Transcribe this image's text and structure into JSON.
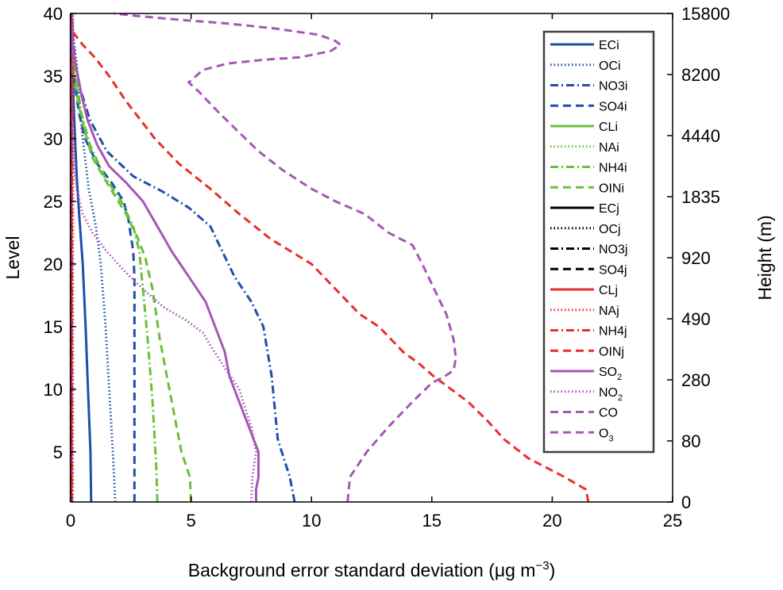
{
  "chart_data": {
    "type": "line",
    "xlabel": "Background error standard deviation (μg m",
    "xlabel_sup": "−3",
    "xlabel_suffix": ")",
    "ylabel_left": "Level",
    "ylabel_right": "Height (m)",
    "xlim": [
      0,
      25
    ],
    "ylim": [
      1,
      40
    ],
    "x_ticks": [
      "0",
      "5",
      "10",
      "15",
      "20",
      "25"
    ],
    "y_ticks_left": [
      "5",
      "10",
      "15",
      "20",
      "25",
      "30",
      "35",
      "40"
    ],
    "y_ticks_right": [
      "0",
      "80",
      "280",
      "490",
      "920",
      "1835",
      "4440",
      "8200",
      "15800"
    ],
    "legend_position": "top-right",
    "colors": {
      "blue": "#1f4fa8",
      "green": "#66c23a",
      "black": "#000000",
      "red": "#e8302c",
      "purple": "#a756b8"
    },
    "series": [
      {
        "name": "ECi",
        "sub": "",
        "color": "#1f4fa8",
        "style": "solid",
        "points": [
          [
            0.85,
            1
          ],
          [
            0.82,
            5
          ],
          [
            0.72,
            10
          ],
          [
            0.62,
            15
          ],
          [
            0.5,
            20
          ],
          [
            0.35,
            24
          ],
          [
            0.25,
            27
          ],
          [
            0.18,
            30
          ],
          [
            0.12,
            33
          ],
          [
            0.08,
            36
          ],
          [
            0.05,
            38
          ],
          [
            0.03,
            40
          ]
        ]
      },
      {
        "name": "OCi",
        "sub": "",
        "color": "#1f4fa8",
        "style": "dotted",
        "points": [
          [
            1.85,
            1
          ],
          [
            1.75,
            5
          ],
          [
            1.6,
            10
          ],
          [
            1.45,
            15
          ],
          [
            1.25,
            20
          ],
          [
            1.05,
            23
          ],
          [
            0.75,
            26
          ],
          [
            0.5,
            30
          ],
          [
            0.35,
            33
          ],
          [
            0.25,
            36
          ],
          [
            0.12,
            38
          ],
          [
            0.05,
            40
          ]
        ]
      },
      {
        "name": "NO3i",
        "sub": "",
        "color": "#1f4fa8",
        "style": "dashdot",
        "points": [
          [
            9.3,
            1
          ],
          [
            9.1,
            3
          ],
          [
            8.6,
            6
          ],
          [
            8.45,
            9
          ],
          [
            8.35,
            11
          ],
          [
            8.0,
            15
          ],
          [
            7.5,
            17
          ],
          [
            6.8,
            19
          ],
          [
            6.3,
            21
          ],
          [
            5.8,
            23
          ],
          [
            4.9,
            24.5
          ],
          [
            3.8,
            25.8
          ],
          [
            2.6,
            27
          ],
          [
            1.5,
            29
          ],
          [
            0.8,
            31.5
          ],
          [
            0.4,
            34
          ],
          [
            0.2,
            36
          ],
          [
            0.08,
            38
          ],
          [
            0.03,
            40
          ]
        ]
      },
      {
        "name": "SO4i",
        "sub": "",
        "color": "#1f4fa8",
        "style": "dashed",
        "points": [
          [
            2.65,
            1
          ],
          [
            2.65,
            5
          ],
          [
            2.65,
            10
          ],
          [
            2.65,
            15
          ],
          [
            2.65,
            19
          ],
          [
            2.6,
            21
          ],
          [
            2.4,
            23.5
          ],
          [
            2.2,
            25
          ],
          [
            1.7,
            26.5
          ],
          [
            1.1,
            28
          ],
          [
            0.6,
            30
          ],
          [
            0.35,
            32
          ],
          [
            0.2,
            34
          ],
          [
            0.1,
            36
          ],
          [
            0.05,
            38
          ],
          [
            0.02,
            40
          ]
        ]
      },
      {
        "name": "CLi",
        "sub": "",
        "color": "#66c23a",
        "style": "solid",
        "points": [
          [
            0.02,
            1
          ],
          [
            0.02,
            10
          ],
          [
            0.02,
            20
          ],
          [
            0.02,
            30
          ],
          [
            0.02,
            40
          ]
        ]
      },
      {
        "name": "NAi",
        "sub": "",
        "color": "#66c23a",
        "style": "dotted",
        "points": [
          [
            0.03,
            1
          ],
          [
            0.03,
            10
          ],
          [
            0.03,
            20
          ],
          [
            0.03,
            30
          ],
          [
            0.03,
            40
          ]
        ]
      },
      {
        "name": "NH4i",
        "sub": "",
        "color": "#66c23a",
        "style": "dashdot",
        "points": [
          [
            3.6,
            1
          ],
          [
            3.55,
            4
          ],
          [
            3.4,
            9
          ],
          [
            3.2,
            14
          ],
          [
            3.0,
            18
          ],
          [
            2.85,
            21
          ],
          [
            2.6,
            23
          ],
          [
            2.1,
            25
          ],
          [
            1.4,
            27
          ],
          [
            0.8,
            29.5
          ],
          [
            0.45,
            32
          ],
          [
            0.25,
            34.5
          ],
          [
            0.12,
            36.5
          ],
          [
            0.05,
            38
          ],
          [
            0.02,
            40
          ]
        ]
      },
      {
        "name": "OINi",
        "sub": "",
        "color": "#66c23a",
        "style": "dashed",
        "points": [
          [
            5.0,
            1
          ],
          [
            4.95,
            3
          ],
          [
            4.6,
            5
          ],
          [
            4.1,
            10
          ],
          [
            3.7,
            14
          ],
          [
            3.4,
            18
          ],
          [
            3.1,
            20.5
          ],
          [
            2.8,
            22
          ],
          [
            2.3,
            24
          ],
          [
            1.5,
            26.5
          ],
          [
            0.9,
            28.5
          ],
          [
            0.6,
            30.5
          ],
          [
            0.35,
            32.5
          ],
          [
            0.15,
            35
          ],
          [
            0.06,
            37
          ],
          [
            0.02,
            40
          ]
        ]
      },
      {
        "name": "ECj",
        "sub": "",
        "color": "#000000",
        "style": "solid",
        "points": [
          [
            0.01,
            1
          ],
          [
            0.01,
            10
          ],
          [
            0.01,
            20
          ],
          [
            0.01,
            30
          ],
          [
            0.01,
            40
          ]
        ]
      },
      {
        "name": "OCj",
        "sub": "",
        "color": "#000000",
        "style": "dotted",
        "points": [
          [
            0.015,
            1
          ],
          [
            0.015,
            10
          ],
          [
            0.015,
            20
          ],
          [
            0.015,
            30
          ],
          [
            0.015,
            40
          ]
        ]
      },
      {
        "name": "NO3j",
        "sub": "",
        "color": "#000000",
        "style": "dashdot",
        "points": [
          [
            0.02,
            1
          ],
          [
            0.02,
            10
          ],
          [
            0.02,
            20
          ],
          [
            0.02,
            30
          ],
          [
            0.02,
            40
          ]
        ]
      },
      {
        "name": "SO4j",
        "sub": "",
        "color": "#000000",
        "style": "dashed",
        "points": [
          [
            0.025,
            1
          ],
          [
            0.025,
            10
          ],
          [
            0.025,
            20
          ],
          [
            0.025,
            30
          ],
          [
            0.025,
            40
          ]
        ]
      },
      {
        "name": "CLj",
        "sub": "",
        "color": "#e8302c",
        "style": "solid",
        "points": [
          [
            0.03,
            1
          ],
          [
            0.03,
            10
          ],
          [
            0.03,
            20
          ],
          [
            0.03,
            30
          ],
          [
            0.03,
            40
          ]
        ]
      },
      {
        "name": "NAj",
        "sub": "",
        "color": "#e8302c",
        "style": "dotted",
        "points": [
          [
            0.1,
            1
          ],
          [
            0.1,
            10
          ],
          [
            0.1,
            20
          ],
          [
            0.1,
            30
          ],
          [
            0.1,
            40
          ]
        ]
      },
      {
        "name": "NH4j",
        "sub": "",
        "color": "#e8302c",
        "style": "dashdot",
        "points": [
          [
            0.05,
            1
          ],
          [
            0.05,
            10
          ],
          [
            0.05,
            20
          ],
          [
            0.05,
            30
          ],
          [
            0.05,
            40
          ]
        ]
      },
      {
        "name": "OINj",
        "sub": "",
        "color": "#e8302c",
        "style": "dashed",
        "points": [
          [
            21.5,
            1
          ],
          [
            21.4,
            2
          ],
          [
            20.5,
            3
          ],
          [
            19.0,
            4.5
          ],
          [
            18.0,
            6
          ],
          [
            17.3,
            7.5
          ],
          [
            16.5,
            9
          ],
          [
            15.8,
            10
          ],
          [
            15.1,
            11
          ],
          [
            14.5,
            12
          ],
          [
            13.8,
            13
          ],
          [
            13.3,
            14
          ],
          [
            12.8,
            15
          ],
          [
            12.0,
            16
          ],
          [
            11.0,
            18
          ],
          [
            10.0,
            20
          ],
          [
            8.3,
            22
          ],
          [
            7.0,
            24
          ],
          [
            5.8,
            26
          ],
          [
            4.5,
            28
          ],
          [
            3.5,
            30
          ],
          [
            2.7,
            32
          ],
          [
            2.3,
            33
          ],
          [
            1.6,
            35
          ],
          [
            1.0,
            36.5
          ],
          [
            0.5,
            37.5
          ],
          [
            0.1,
            38.5
          ],
          [
            0.03,
            40
          ]
        ]
      },
      {
        "name": "SO",
        "sub": "2",
        "color": "#a756b8",
        "style": "solid",
        "points": [
          [
            7.7,
            1
          ],
          [
            7.7,
            2
          ],
          [
            7.8,
            3
          ],
          [
            7.8,
            5
          ],
          [
            7.4,
            7
          ],
          [
            7.0,
            9
          ],
          [
            6.6,
            11
          ],
          [
            6.4,
            13
          ],
          [
            6.0,
            15
          ],
          [
            5.6,
            17
          ],
          [
            4.9,
            19
          ],
          [
            4.2,
            21
          ],
          [
            3.6,
            23
          ],
          [
            3.0,
            25
          ],
          [
            2.3,
            26.5
          ],
          [
            1.6,
            27.8
          ],
          [
            1.1,
            29.5
          ],
          [
            0.7,
            31.5
          ],
          [
            0.45,
            33.5
          ],
          [
            0.3,
            35
          ],
          [
            0.15,
            36.5
          ],
          [
            0.05,
            38
          ],
          [
            0.02,
            40
          ]
        ]
      },
      {
        "name": "NO",
        "sub": "2",
        "color": "#a756b8",
        "style": "dotted",
        "points": [
          [
            7.5,
            1
          ],
          [
            7.55,
            3
          ],
          [
            7.7,
            5
          ],
          [
            7.5,
            7
          ],
          [
            7.0,
            10
          ],
          [
            6.3,
            12
          ],
          [
            5.8,
            13.5
          ],
          [
            5.5,
            14.5
          ],
          [
            4.8,
            15.5
          ],
          [
            3.9,
            16.5
          ],
          [
            3.0,
            18
          ],
          [
            2.2,
            19.5
          ],
          [
            1.5,
            21
          ],
          [
            0.9,
            22.5
          ],
          [
            0.5,
            24
          ],
          [
            0.25,
            26
          ],
          [
            0.12,
            28
          ],
          [
            0.05,
            30
          ],
          [
            0.03,
            32
          ],
          [
            0.02,
            36
          ],
          [
            0.01,
            40
          ]
        ]
      },
      {
        "name": "CO",
        "sub": "",
        "color": "#a756b8",
        "style": "dashed",
        "points": [
          [
            0.005,
            1
          ],
          [
            0.005,
            10
          ],
          [
            0.005,
            20
          ],
          [
            0.005,
            30
          ],
          [
            0.005,
            40
          ]
        ]
      },
      {
        "name": "O",
        "sub": "3",
        "color": "#a756b8",
        "style": "dashed",
        "points": [
          [
            11.5,
            1
          ],
          [
            11.6,
            3
          ],
          [
            12.3,
            5
          ],
          [
            13.2,
            7
          ],
          [
            14.2,
            9
          ],
          [
            15.0,
            10.5
          ],
          [
            15.5,
            11
          ],
          [
            15.9,
            11.5
          ],
          [
            16.0,
            12.5
          ],
          [
            15.9,
            14
          ],
          [
            15.6,
            16
          ],
          [
            15.1,
            18
          ],
          [
            14.6,
            20
          ],
          [
            14.2,
            21.5
          ],
          [
            13.2,
            22.5
          ],
          [
            12.2,
            24
          ],
          [
            11.0,
            25
          ],
          [
            10.0,
            26
          ],
          [
            8.8,
            27.5
          ],
          [
            7.8,
            29
          ],
          [
            7.0,
            30.5
          ],
          [
            6.2,
            32
          ],
          [
            5.7,
            33
          ],
          [
            5.3,
            33.8
          ],
          [
            4.9,
            34.5
          ],
          [
            5.5,
            35.5
          ],
          [
            6.5,
            36
          ],
          [
            8.0,
            36.3
          ],
          [
            9.5,
            36.5
          ],
          [
            10.8,
            37
          ],
          [
            11.2,
            37.5
          ],
          [
            11.0,
            37.8
          ],
          [
            10.3,
            38.3
          ],
          [
            8.5,
            38.8
          ],
          [
            6.5,
            39.2
          ],
          [
            4.5,
            39.5
          ],
          [
            2.8,
            39.8
          ],
          [
            1.8,
            40
          ]
        ]
      }
    ]
  }
}
